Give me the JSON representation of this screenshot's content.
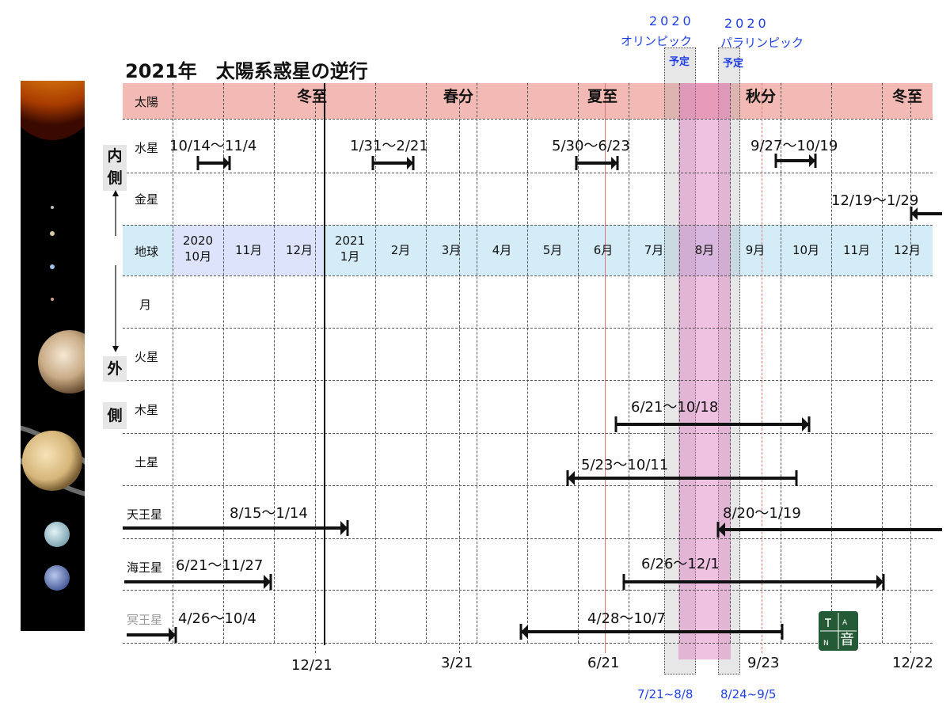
{
  "title": "2021年　太陽系惑星の逆行",
  "rows": {
    "sun": "太陽",
    "mercury": "水星",
    "venus": "金星",
    "earth": "地球",
    "moon": "月",
    "mars": "火星",
    "jupiter": "木星",
    "saturn": "土星",
    "uranus": "天王星",
    "neptune": "海王星",
    "pluto": "冥王星"
  },
  "side": {
    "inner_1": "内",
    "inner_2": "側",
    "outer_1": "外",
    "outer_2": "側"
  },
  "seasons": [
    "冬至",
    "春分",
    "夏至",
    "秋分",
    "冬至"
  ],
  "months": [
    [
      "2020",
      "10月"
    ],
    [
      "11月"
    ],
    [
      "12月"
    ],
    [
      "2021",
      "1月"
    ],
    [
      "2月"
    ],
    [
      "3月"
    ],
    [
      "4月"
    ],
    [
      "5月"
    ],
    [
      "6月"
    ],
    [
      "7月"
    ],
    [
      "8月"
    ],
    [
      "9月"
    ],
    [
      "10月"
    ],
    [
      "11月"
    ],
    [
      "12月"
    ]
  ],
  "retrogrades": {
    "mercury_1": "10/14〜11/4",
    "mercury_2": "1/31〜2/21",
    "mercury_3": "5/30〜6/23",
    "mercury_4": "9/27〜10/19",
    "venus_1": "12/19〜1/29",
    "jupiter_1": "6/21〜10/18",
    "saturn_1": "5/23〜10/11",
    "uranus_1": "8/15〜1/14",
    "uranus_2": "8/20〜1/19",
    "neptune_1": "6/21〜11/27",
    "neptune_2": "6/26〜12/1",
    "pluto_1": "4/26〜10/4",
    "pluto_2": "4/28〜10/7"
  },
  "bottom_dates": [
    "12/21",
    "3/21",
    "6/21",
    "9/23",
    "12/22"
  ],
  "olympics": {
    "year_1": "2020",
    "name_1": "オリンピック",
    "planned_1": "予定",
    "range_1": "7/21~8/8",
    "year_2": "2020",
    "name_2": "パラリンピック",
    "planned_2": "予定",
    "range_2": "8/24~9/5"
  },
  "logo": {
    "glyph": "音",
    "a": "A",
    "n": "N"
  },
  "colors": {
    "sun_band": "#f3b9b4",
    "earth_band": "#d4ecf7",
    "olympic_blue": "#1f3fe6",
    "solstice_line": "#e57373"
  }
}
